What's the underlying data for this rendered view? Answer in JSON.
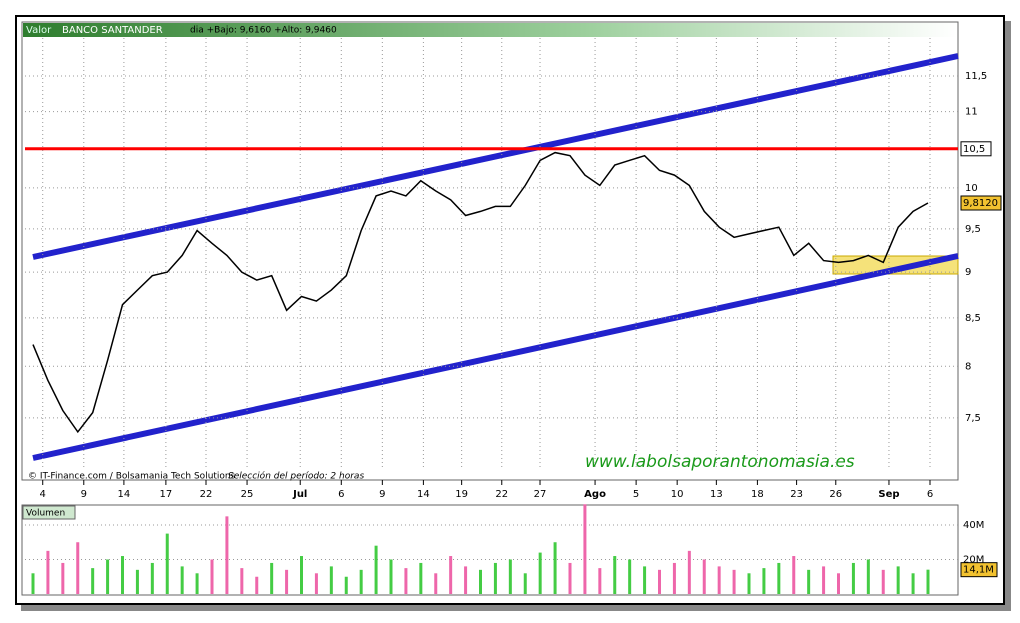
{
  "header": {
    "field_label": "Valor",
    "instrument": "BANCO SANTANDER",
    "range_text": "dia +Bajo: 9,6160 +Alto: 9,9460"
  },
  "footer": {
    "source": "© IT-Finance.com / Bolsamania Tech Solutions",
    "period": "Selección del período: 2 horas",
    "watermark": "www.labolsaporantonomasia.es"
  },
  "chart_data": [
    {
      "type": "line",
      "log_scale": true,
      "grid": true,
      "color": "#000000",
      "values": [
        8.22,
        7.86,
        7.57,
        7.37,
        7.55,
        8.06,
        8.64,
        8.8,
        8.96,
        9.0,
        9.19,
        9.48,
        9.33,
        9.19,
        9.0,
        8.91,
        8.96,
        8.58,
        8.73,
        8.68,
        8.8,
        8.96,
        9.48,
        9.9,
        9.96,
        9.9,
        10.09,
        9.96,
        9.85,
        9.66,
        9.71,
        9.77,
        9.77,
        10.03,
        10.35,
        10.45,
        10.41,
        10.16,
        10.03,
        10.29,
        10.35,
        10.41,
        10.22,
        10.16,
        10.03,
        9.71,
        9.52,
        9.4,
        9.44,
        9.48,
        9.52,
        9.19,
        9.33,
        9.13,
        9.11,
        9.13,
        9.19,
        9.11,
        9.52,
        9.71,
        9.812
      ],
      "ylim": [
        6.94,
        12.06
      ],
      "yticks": [
        {
          "value": 7.5,
          "label": "7,5"
        },
        8,
        {
          "value": 8.5,
          "label": "8,5"
        },
        9,
        {
          "value": 9.5,
          "label": "9,5"
        },
        10,
        11,
        {
          "value": 11.5,
          "label": "11,5"
        }
      ],
      "xlim": [
        0,
        100
      ],
      "xticks": [
        {
          "value": 1.9,
          "label": "4"
        },
        {
          "value": 6.3,
          "label": "9"
        },
        {
          "value": 10.6,
          "label": "14"
        },
        {
          "value": 15.1,
          "label": "17"
        },
        {
          "value": 19.4,
          "label": "22"
        },
        {
          "value": 23.8,
          "label": "25"
        },
        {
          "value": 29.5,
          "label": "Jul"
        },
        {
          "value": 33.9,
          "label": "6"
        },
        {
          "value": 38.3,
          "label": "9"
        },
        {
          "value": 42.7,
          "label": "14"
        },
        {
          "value": 46.8,
          "label": "19"
        },
        {
          "value": 51.1,
          "label": "22"
        },
        {
          "value": 55.2,
          "label": "27"
        },
        {
          "value": 61.1,
          "label": "Ago"
        },
        {
          "value": 65.5,
          "label": "5"
        },
        {
          "value": 69.9,
          "label": "10"
        },
        {
          "value": 74.1,
          "label": "13"
        },
        {
          "value": 78.5,
          "label": "18"
        },
        {
          "value": 82.7,
          "label": "23"
        },
        {
          "value": 86.9,
          "label": "26"
        },
        {
          "value": 92.6,
          "label": "Sep"
        },
        {
          "value": 97.0,
          "label": "6"
        }
      ],
      "level": {
        "value": 10.5,
        "label": "10,5",
        "color": "#ff0000"
      },
      "last_price": {
        "value": 9.812,
        "label": "9,8120"
      }
    },
    {
      "type": "bar",
      "title": "Volumen",
      "up_color": "#44cc44",
      "down_color": "#ee66aa",
      "values": [
        12000000,
        25000000,
        18000000,
        30000000,
        15000000,
        20000000,
        22000000,
        14000000,
        18000000,
        35000000,
        16000000,
        12000000,
        20000000,
        45000000,
        15000000,
        10000000,
        18000000,
        14000000,
        22000000,
        12000000,
        16000000,
        10000000,
        14000000,
        28000000,
        20000000,
        15000000,
        18000000,
        12000000,
        22000000,
        16000000,
        14000000,
        18000000,
        20000000,
        12000000,
        24000000,
        30000000,
        18000000,
        52000000,
        15000000,
        22000000,
        20000000,
        16000000,
        14000000,
        18000000,
        25000000,
        20000000,
        16000000,
        14000000,
        12000000,
        15000000,
        18000000,
        22000000,
        14000000,
        16000000,
        12000000,
        18000000,
        20000000,
        14000000,
        16000000,
        12000000,
        14100000
      ],
      "ylim": [
        0,
        51000000
      ],
      "yticks": [
        {
          "value": 20000000,
          "label": "20M"
        },
        {
          "value": 40000000,
          "label": "40M"
        }
      ],
      "last_value": {
        "value": 14100000,
        "label": "14,1M"
      }
    }
  ]
}
